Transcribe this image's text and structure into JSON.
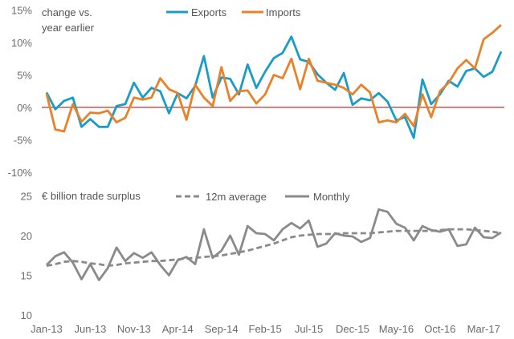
{
  "chart_data": [
    {
      "type": "line",
      "title": "change vs. year earlier",
      "title_lines": [
        "change vs.",
        "year earlier"
      ],
      "ylim": [
        -10,
        15
      ],
      "yticks": [
        "15%",
        "10%",
        "5%",
        "0%",
        "-5%",
        "-10%"
      ],
      "zero_line_color": "#d0312d",
      "legend_position": "top",
      "series": [
        {
          "name": "Exports",
          "color": "#1a9cc6",
          "values": [
            2.3,
            -0.3,
            1.0,
            1.5,
            -3.0,
            -1.8,
            -3.0,
            -3.0,
            0.2,
            0.5,
            3.8,
            1.5,
            3.0,
            2.5,
            -0.9,
            2.2,
            1.4,
            3.3,
            7.9,
            1.5,
            4.6,
            4.4,
            2.0,
            6.6,
            3.0,
            5.5,
            7.6,
            8.4,
            10.9,
            7.4,
            7.0,
            5.1,
            3.8,
            2.7,
            5.3,
            0.4,
            1.4,
            1.1,
            2.2,
            0.9,
            -2.0,
            -1.5,
            -4.7,
            4.3,
            0.5,
            2.0,
            4.1,
            3.2,
            5.6,
            6.0,
            4.7,
            5.5,
            8.6
          ]
        },
        {
          "name": "Imports",
          "color": "#e8822a",
          "values": [
            2.1,
            -3.4,
            -3.7,
            0.5,
            -2.2,
            -0.8,
            -0.9,
            -0.5,
            -2.3,
            -1.6,
            1.5,
            1.2,
            1.5,
            4.5,
            2.8,
            2.2,
            -1.9,
            3.5,
            1.5,
            0.2,
            6.2,
            1.0,
            2.5,
            2.6,
            0.6,
            2.0,
            5.0,
            4.5,
            7.5,
            2.8,
            7.5,
            4.1,
            3.8,
            3.5,
            3.0,
            2.0,
            3.5,
            2.3,
            -2.3,
            -2.0,
            -2.3,
            -1.0,
            -2.9,
            2.0,
            -1.5,
            2.5,
            3.8,
            6.0,
            7.3,
            6.0,
            10.5,
            11.5,
            12.7
          ]
        }
      ]
    },
    {
      "type": "line",
      "title": "€ billion trade surplus",
      "ylim": [
        10,
        25
      ],
      "yticks": [
        "25",
        "20",
        "15",
        "10"
      ],
      "legend_position": "top",
      "xticks": [
        "Jan-13",
        "Jun-13",
        "Nov-13",
        "Apr-14",
        "Sep-14",
        "Feb-15",
        "Jul-15",
        "Dec-15",
        "May-16",
        "Oct-16",
        "Mar-17"
      ],
      "series": [
        {
          "name": "12m average",
          "color": "#8a8a8a",
          "style": "dashed",
          "values": [
            16.2,
            16.4,
            16.7,
            16.8,
            16.7,
            16.5,
            16.4,
            16.2,
            16.3,
            16.5,
            16.6,
            16.7,
            16.8,
            16.8,
            16.9,
            17.0,
            17.1,
            17.2,
            17.3,
            17.4,
            17.5,
            17.7,
            17.9,
            18.1,
            18.4,
            18.7,
            19.0,
            19.4,
            19.8,
            20.0,
            20.1,
            20.2,
            20.2,
            20.2,
            20.3,
            20.3,
            20.3,
            20.3,
            20.4,
            20.5,
            20.6,
            20.6,
            20.6,
            20.6,
            20.6,
            20.7,
            20.8,
            20.8,
            20.8,
            20.7,
            20.6,
            20.5,
            20.3
          ]
        },
        {
          "name": "Monthly",
          "color": "#8a8a8a",
          "style": "solid",
          "values": [
            16.3,
            17.4,
            17.9,
            16.6,
            14.5,
            16.4,
            14.4,
            15.9,
            18.5,
            16.8,
            17.8,
            17.2,
            17.9,
            16.3,
            15.0,
            16.9,
            17.3,
            16.4,
            20.8,
            17.2,
            18.1,
            20.0,
            17.6,
            21.2,
            20.3,
            20.2,
            19.4,
            20.8,
            21.6,
            20.9,
            21.9,
            18.6,
            19.0,
            20.3,
            20.0,
            19.9,
            19.2,
            19.7,
            23.3,
            23.0,
            21.5,
            21.0,
            19.4,
            21.2,
            20.7,
            20.5,
            20.8,
            18.7,
            18.9,
            21.0,
            19.8,
            19.7,
            20.4
          ]
        }
      ]
    }
  ]
}
